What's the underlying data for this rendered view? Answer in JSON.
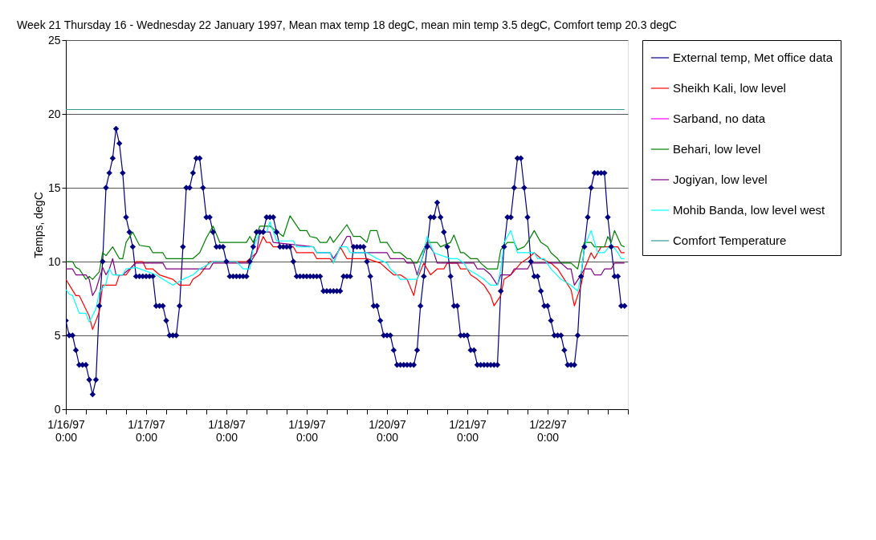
{
  "chart_data": {
    "type": "line",
    "title": "Week 21 Thursday 16 - Wednesday 22 January 1997, Mean max temp 18 degC, mean min temp 3.5 degC, Comfort temp 20.3 degC",
    "ylabel": "Temps, degC",
    "xlim": [
      "1997-01-16T00:00",
      "1997-01-23T00:00"
    ],
    "xticks": [
      {
        "value": "1997-01-16T00:00",
        "label": "1/16/97 0:00"
      },
      {
        "value": "1997-01-16T06:00",
        "label": null
      },
      {
        "value": "1997-01-16T12:00",
        "label": null
      },
      {
        "value": "1997-01-16T18:00",
        "label": null
      },
      {
        "value": "1997-01-17T00:00",
        "label": "1/17/97 0:00"
      },
      {
        "value": "1997-01-17T06:00",
        "label": null
      },
      {
        "value": "1997-01-17T12:00",
        "label": null
      },
      {
        "value": "1997-01-17T18:00",
        "label": null
      },
      {
        "value": "1997-01-18T00:00",
        "label": "1/18/97 0:00"
      },
      {
        "value": "1997-01-18T06:00",
        "label": null
      },
      {
        "value": "1997-01-18T12:00",
        "label": null
      },
      {
        "value": "1997-01-18T18:00",
        "label": null
      },
      {
        "value": "1997-01-19T00:00",
        "label": "1/19/97 0:00"
      },
      {
        "value": "1997-01-19T06:00",
        "label": null
      },
      {
        "value": "1997-01-19T12:00",
        "label": null
      },
      {
        "value": "1997-01-19T18:00",
        "label": null
      },
      {
        "value": "1997-01-20T00:00",
        "label": "1/20/97 0:00"
      },
      {
        "value": "1997-01-20T06:00",
        "label": null
      },
      {
        "value": "1997-01-20T12:00",
        "label": null
      },
      {
        "value": "1997-01-20T18:00",
        "label": null
      },
      {
        "value": "1997-01-21T00:00",
        "label": "1/21/97 0:00"
      },
      {
        "value": "1997-01-21T06:00",
        "label": null
      },
      {
        "value": "1997-01-21T12:00",
        "label": null
      },
      {
        "value": "1997-01-21T18:00",
        "label": null
      },
      {
        "value": "1997-01-22T00:00",
        "label": "1/22/97 0:00"
      },
      {
        "value": "1997-01-22T06:00",
        "label": null
      },
      {
        "value": "1997-01-22T12:00",
        "label": null
      },
      {
        "value": "1997-01-22T18:00",
        "label": null
      },
      {
        "value": "1997-01-23T00:00",
        "label": null
      }
    ],
    "ylim": [
      0,
      25
    ],
    "yticks": [
      0,
      5,
      10,
      15,
      20,
      25
    ],
    "grid": "y",
    "legend": "right",
    "x": [
      "1997-01-16T00:00",
      "1997-01-16T01:00",
      "1997-01-16T02:00",
      "1997-01-16T03:00",
      "1997-01-16T04:00",
      "1997-01-16T05:00",
      "1997-01-16T06:00",
      "1997-01-16T07:00",
      "1997-01-16T08:00",
      "1997-01-16T09:00",
      "1997-01-16T10:00",
      "1997-01-16T11:00",
      "1997-01-16T12:00",
      "1997-01-16T13:00",
      "1997-01-16T14:00",
      "1997-01-16T15:00",
      "1997-01-16T16:00",
      "1997-01-16T17:00",
      "1997-01-16T18:00",
      "1997-01-16T19:00",
      "1997-01-16T20:00",
      "1997-01-16T21:00",
      "1997-01-16T22:00",
      "1997-01-16T23:00",
      "1997-01-17T00:00",
      "1997-01-17T01:00",
      "1997-01-17T02:00",
      "1997-01-17T03:00",
      "1997-01-17T04:00",
      "1997-01-17T05:00",
      "1997-01-17T06:00",
      "1997-01-17T07:00",
      "1997-01-17T08:00",
      "1997-01-17T09:00",
      "1997-01-17T10:00",
      "1997-01-17T11:00",
      "1997-01-17T12:00",
      "1997-01-17T13:00",
      "1997-01-17T14:00",
      "1997-01-17T15:00",
      "1997-01-17T16:00",
      "1997-01-17T17:00",
      "1997-01-17T18:00",
      "1997-01-17T19:00",
      "1997-01-17T20:00",
      "1997-01-17T21:00",
      "1997-01-17T22:00",
      "1997-01-17T23:00",
      "1997-01-18T00:00",
      "1997-01-18T01:00",
      "1997-01-18T02:00",
      "1997-01-18T03:00",
      "1997-01-18T04:00",
      "1997-01-18T05:00",
      "1997-01-18T06:00",
      "1997-01-18T07:00",
      "1997-01-18T08:00",
      "1997-01-18T09:00",
      "1997-01-18T10:00",
      "1997-01-18T11:00",
      "1997-01-18T12:00",
      "1997-01-18T13:00",
      "1997-01-18T14:00",
      "1997-01-18T15:00",
      "1997-01-18T16:00",
      "1997-01-18T17:00",
      "1997-01-18T18:00",
      "1997-01-18T19:00",
      "1997-01-18T20:00",
      "1997-01-18T21:00",
      "1997-01-18T22:00",
      "1997-01-18T23:00",
      "1997-01-19T00:00",
      "1997-01-19T01:00",
      "1997-01-19T02:00",
      "1997-01-19T03:00",
      "1997-01-19T04:00",
      "1997-01-19T05:00",
      "1997-01-19T06:00",
      "1997-01-19T07:00",
      "1997-01-19T08:00",
      "1997-01-19T09:00",
      "1997-01-19T10:00",
      "1997-01-19T11:00",
      "1997-01-19T12:00",
      "1997-01-19T13:00",
      "1997-01-19T14:00",
      "1997-01-19T15:00",
      "1997-01-19T16:00",
      "1997-01-19T17:00",
      "1997-01-19T18:00",
      "1997-01-19T19:00",
      "1997-01-19T20:00",
      "1997-01-19T21:00",
      "1997-01-19T22:00",
      "1997-01-19T23:00",
      "1997-01-20T00:00",
      "1997-01-20T01:00",
      "1997-01-20T02:00",
      "1997-01-20T03:00",
      "1997-01-20T04:00",
      "1997-01-20T05:00",
      "1997-01-20T06:00",
      "1997-01-20T07:00",
      "1997-01-20T08:00",
      "1997-01-20T09:00",
      "1997-01-20T10:00",
      "1997-01-20T11:00",
      "1997-01-20T12:00",
      "1997-01-20T13:00",
      "1997-01-20T14:00",
      "1997-01-20T15:00",
      "1997-01-20T16:00",
      "1997-01-20T17:00",
      "1997-01-20T18:00",
      "1997-01-20T19:00",
      "1997-01-20T20:00",
      "1997-01-20T21:00",
      "1997-01-20T22:00",
      "1997-01-20T23:00",
      "1997-01-21T00:00",
      "1997-01-21T01:00",
      "1997-01-21T02:00",
      "1997-01-21T03:00",
      "1997-01-21T04:00",
      "1997-01-21T05:00",
      "1997-01-21T06:00",
      "1997-01-21T07:00",
      "1997-01-21T08:00",
      "1997-01-21T09:00",
      "1997-01-21T10:00",
      "1997-01-21T11:00",
      "1997-01-21T12:00",
      "1997-01-21T13:00",
      "1997-01-21T14:00",
      "1997-01-21T15:00",
      "1997-01-21T16:00",
      "1997-01-21T17:00",
      "1997-01-21T18:00",
      "1997-01-21T19:00",
      "1997-01-21T20:00",
      "1997-01-21T21:00",
      "1997-01-21T22:00",
      "1997-01-21T23:00",
      "1997-01-22T00:00",
      "1997-01-22T01:00",
      "1997-01-22T02:00",
      "1997-01-22T03:00",
      "1997-01-22T04:00",
      "1997-01-22T05:00",
      "1997-01-22T06:00",
      "1997-01-22T07:00",
      "1997-01-22T08:00",
      "1997-01-22T09:00",
      "1997-01-22T10:00",
      "1997-01-22T11:00",
      "1997-01-22T12:00",
      "1997-01-22T13:00",
      "1997-01-22T14:00",
      "1997-01-22T15:00",
      "1997-01-22T16:00",
      "1997-01-22T17:00",
      "1997-01-22T18:00",
      "1997-01-22T19:00",
      "1997-01-22T20:00",
      "1997-01-22T21:00",
      "1997-01-22T22:00",
      "1997-01-22T23:00"
    ],
    "series": [
      {
        "name": "External temp, Met office data",
        "color": "#000080",
        "marker": "diamond",
        "values": [
          6,
          5,
          5,
          4,
          3,
          3,
          3,
          2,
          1,
          2,
          7,
          10,
          15,
          16,
          17,
          19,
          18,
          16,
          13,
          12,
          11,
          9,
          9,
          9,
          9,
          9,
          9,
          7,
          7,
          7,
          6,
          5,
          5,
          5,
          7,
          11,
          15,
          15,
          16,
          17,
          17,
          15,
          13,
          13,
          12,
          11,
          11,
          11,
          10,
          9,
          9,
          9,
          9,
          9,
          9,
          10,
          11,
          12,
          12,
          12,
          13,
          13,
          13,
          12,
          11,
          11,
          11,
          11,
          10,
          9,
          9,
          9,
          9,
          9,
          9,
          9,
          9,
          8,
          8,
          8,
          8,
          8,
          8,
          9,
          9,
          9,
          11,
          11,
          11,
          11,
          10,
          9,
          7,
          7,
          6,
          5,
          5,
          5,
          4,
          3,
          3,
          3,
          3,
          3,
          3,
          4,
          7,
          9,
          11,
          13,
          13,
          14,
          13,
          12,
          11,
          9,
          7,
          7,
          5,
          5,
          5,
          4,
          4,
          3,
          3,
          3,
          3,
          3,
          3,
          3,
          8,
          11,
          13,
          13,
          15,
          17,
          17,
          15,
          13,
          10,
          9,
          9,
          8,
          7,
          7,
          6,
          5,
          5,
          5,
          4,
          3,
          3,
          3,
          5,
          9,
          11,
          13,
          15,
          16,
          16,
          16,
          16,
          13,
          11,
          9,
          9,
          7,
          7
        ]
      },
      {
        "name": "Sheikh Kali, low level",
        "color": "#ff0000",
        "x": [
          "1997-01-16T00:00",
          "1997-01-16T03:00",
          "1997-01-16T04:00",
          "1997-01-16T07:00",
          "1997-01-16T08:00",
          "1997-01-16T10:00",
          "1997-01-16T11:00",
          "1997-01-16T15:00",
          "1997-01-16T16:00",
          "1997-01-16T18:00",
          "1997-01-16T21:00",
          "1997-01-16T23:00",
          "1997-01-17T00:00",
          "1997-01-17T02:00",
          "1997-01-17T04:00",
          "1997-01-17T08:00",
          "1997-01-17T10:00",
          "1997-01-17T13:00",
          "1997-01-17T14:00",
          "1997-01-17T16:00",
          "1997-01-17T19:00",
          "1997-01-18T06:00",
          "1997-01-18T09:00",
          "1997-01-18T11:00",
          "1997-01-18T12:00",
          "1997-01-18T13:00",
          "1997-01-18T14:00",
          "1997-01-18T20:00",
          "1997-01-18T21:00",
          "1997-01-19T02:00",
          "1997-01-19T03:00",
          "1997-01-19T07:00",
          "1997-01-19T08:00",
          "1997-01-19T10:00",
          "1997-01-19T12:00",
          "1997-01-19T18:00",
          "1997-01-19T22:00",
          "1997-01-20T00:00",
          "1997-01-20T02:00",
          "1997-01-20T04:00",
          "1997-01-20T06:00",
          "1997-01-20T08:00",
          "1997-01-20T09:00",
          "1997-01-20T11:00",
          "1997-01-20T13:00",
          "1997-01-20T15:00",
          "1997-01-20T17:00",
          "1997-01-20T18:00",
          "1997-01-20T21:00",
          "1997-01-20T22:00",
          "1997-01-21T00:00",
          "1997-01-21T01:00",
          "1997-01-21T03:00",
          "1997-01-21T05:00",
          "1997-01-21T07:00",
          "1997-01-21T08:00",
          "1997-01-21T10:00",
          "1997-01-21T11:00",
          "1997-01-21T13:00",
          "1997-01-21T16:00",
          "1997-01-21T18:00",
          "1997-01-21T20:00",
          "1997-01-21T22:00",
          "1997-01-22T01:00",
          "1997-01-22T03:00",
          "1997-01-22T05:00",
          "1997-01-22T07:00",
          "1997-01-22T08:00",
          "1997-01-22T10:00",
          "1997-01-22T11:00",
          "1997-01-22T13:00",
          "1997-01-22T14:00",
          "1997-01-22T16:00",
          "1997-01-22T21:00",
          "1997-01-22T22:00",
          "1997-01-22T23:00"
        ],
        "values": [
          8.8,
          7.7,
          7.7,
          6.3,
          5.4,
          6.6,
          8.4,
          8.4,
          9.1,
          9.1,
          10,
          10,
          9.5,
          9.5,
          9.1,
          8.8,
          8.4,
          8.4,
          8.8,
          9.1,
          10,
          10,
          10.6,
          11.7,
          11.3,
          11.3,
          11,
          11,
          10.6,
          10.6,
          10.2,
          10.2,
          9.9,
          11,
          10.2,
          10.2,
          9.9,
          9.5,
          9.1,
          9.1,
          8.8,
          7.7,
          8.8,
          9.9,
          9.1,
          9.5,
          9.5,
          9.9,
          9.9,
          9.5,
          9.5,
          9.1,
          8.8,
          8.4,
          7.7,
          7,
          7.7,
          8.8,
          9.1,
          9.9,
          10.2,
          10.6,
          10.2,
          9.9,
          9.5,
          8.8,
          8.1,
          7,
          8.4,
          9.5,
          10.6,
          10.2,
          11,
          11,
          10.6,
          10.6
        ]
      },
      {
        "name": "Sarband, no data",
        "color": "#ff00ff",
        "values": [
          null,
          null,
          null,
          null,
          null,
          null,
          null,
          null,
          null,
          null,
          null,
          null,
          null,
          null,
          null,
          null,
          null,
          null,
          null,
          null,
          null,
          null,
          null,
          null,
          null,
          null,
          null,
          null,
          null,
          null,
          null,
          null,
          null,
          null,
          null,
          null,
          null,
          null,
          null,
          null,
          null,
          null,
          null,
          null,
          null,
          null,
          null,
          null,
          null,
          null,
          null,
          null,
          null,
          null,
          null,
          null,
          null,
          null,
          null,
          null,
          null,
          null,
          null,
          null,
          null,
          null,
          null,
          null,
          null,
          null,
          null,
          null,
          null,
          null,
          null,
          null,
          null,
          null,
          null,
          null,
          null,
          null,
          null,
          null,
          null,
          null,
          null,
          null,
          null,
          null,
          null,
          null,
          null,
          null,
          null,
          null,
          null,
          null,
          null,
          null,
          null,
          null,
          null,
          null,
          null,
          null,
          null,
          null,
          null,
          null,
          null,
          null,
          null,
          null,
          null,
          null,
          null,
          null,
          null,
          null,
          null,
          null,
          null,
          null,
          null,
          null,
          null,
          null,
          null,
          null,
          null,
          null,
          null,
          null,
          null,
          null,
          null,
          null,
          null,
          null,
          null,
          null,
          null,
          null,
          null,
          null,
          null,
          null,
          null,
          null,
          null,
          null,
          null,
          null,
          null,
          null,
          null,
          null,
          null,
          null,
          null,
          null,
          null,
          null,
          null,
          null,
          null,
          null
        ]
      },
      {
        "name": "Behari, low level",
        "color": "#008000",
        "x": [
          "1997-01-16T00:00",
          "1997-01-16T02:00",
          "1997-01-16T03:00",
          "1997-01-16T04:00",
          "1997-01-16T06:00",
          "1997-01-16T07:00",
          "1997-01-16T08:00",
          "1997-01-16T10:00",
          "1997-01-16T11:00",
          "1997-01-16T12:00",
          "1997-01-16T14:00",
          "1997-01-16T16:00",
          "1997-01-16T17:00",
          "1997-01-16T18:00",
          "1997-01-16T20:00",
          "1997-01-16T22:00",
          "1997-01-17T01:00",
          "1997-01-17T02:00",
          "1997-01-17T05:00",
          "1997-01-17T06:00",
          "1997-01-17T14:00",
          "1997-01-17T16:00",
          "1997-01-17T18:00",
          "1997-01-17T20:00",
          "1997-01-17T22:00",
          "1997-01-18T06:00",
          "1997-01-18T07:00",
          "1997-01-18T08:00",
          "1997-01-18T10:00",
          "1997-01-18T13:00",
          "1997-01-18T17:00",
          "1997-01-18T19:00",
          "1997-01-18T22:00",
          "1997-01-19T00:00",
          "1997-01-19T01:00",
          "1997-01-19T03:00",
          "1997-01-19T04:00",
          "1997-01-19T06:00",
          "1997-01-19T07:00",
          "1997-01-19T08:00",
          "1997-01-19T12:00",
          "1997-01-19T14:00",
          "1997-01-19T16:00",
          "1997-01-19T18:00",
          "1997-01-19T19:00",
          "1997-01-19T21:00",
          "1997-01-19T22:00",
          "1997-01-20T00:00",
          "1997-01-20T02:00",
          "1997-01-20T04:00",
          "1997-01-20T06:00",
          "1997-01-20T07:00",
          "1997-01-20T08:00",
          "1997-01-20T09:00",
          "1997-01-20T10:00",
          "1997-01-20T12:00",
          "1997-01-20T15:00",
          "1997-01-20T16:00",
          "1997-01-20T19:00",
          "1997-01-20T20:00",
          "1997-01-20T22:00",
          "1997-01-20T23:00",
          "1997-01-21T01:00",
          "1997-01-21T03:00",
          "1997-01-21T04:00",
          "1997-01-21T06:00",
          "1997-01-21T09:00",
          "1997-01-21T10:00",
          "1997-01-21T12:00",
          "1997-01-21T14:00",
          "1997-01-21T15:00",
          "1997-01-21T17:00",
          "1997-01-21T18:00",
          "1997-01-21T20:00",
          "1997-01-21T22:00",
          "1997-01-22T00:00",
          "1997-01-22T01:00",
          "1997-01-22T03:00",
          "1997-01-22T04:00",
          "1997-01-22T07:00",
          "1997-01-22T09:00",
          "1997-01-22T10:00",
          "1997-01-22T11:00",
          "1997-01-22T13:00",
          "1997-01-22T14:00",
          "1997-01-22T17:00",
          "1997-01-22T18:00",
          "1997-01-22T19:00",
          "1997-01-22T20:00",
          "1997-01-22T22:00",
          "1997-01-22T23:00"
        ],
        "values": [
          10,
          10,
          9.6,
          9.5,
          8.8,
          9,
          8.8,
          9.3,
          10.6,
          10.4,
          11,
          10.2,
          10.2,
          11.3,
          12,
          11.1,
          11,
          10.6,
          10.6,
          10.2,
          10.2,
          10.6,
          11.6,
          12.4,
          11.3,
          11.3,
          11.7,
          11.3,
          12.4,
          12.4,
          11.7,
          13.1,
          12.1,
          12.1,
          11.7,
          11.6,
          11.3,
          11.3,
          11.7,
          11.3,
          12.5,
          11.7,
          11.7,
          11.3,
          12.1,
          12.1,
          11.3,
          11.3,
          10.6,
          10.6,
          10.2,
          10.2,
          9.9,
          9.9,
          10.4,
          11.3,
          11.3,
          11,
          11.3,
          11.8,
          10.6,
          10.6,
          10.2,
          10.2,
          9.9,
          9.5,
          9.5,
          10.8,
          11.3,
          11.3,
          10.8,
          11,
          11.3,
          12.1,
          11.3,
          11,
          10.6,
          10.2,
          9.9,
          9.9,
          9.5,
          10.6,
          11.3,
          11.3,
          11,
          11,
          11.7,
          11.3,
          12.1,
          11.1,
          11
        ]
      },
      {
        "name": "Jogiyan, low level",
        "color": "#800080",
        "x": [
          "1997-01-16T00:00",
          "1997-01-16T02:00",
          "1997-01-16T03:00",
          "1997-01-16T06:00",
          "1997-01-16T07:00",
          "1997-01-16T08:00",
          "1997-01-16T09:00",
          "1997-01-16T11:00",
          "1997-01-16T12:00",
          "1997-01-16T13:00",
          "1997-01-16T14:00",
          "1997-01-16T15:00",
          "1997-01-16T17:00",
          "1997-01-16T19:00",
          "1997-01-16T21:00",
          "1997-01-17T05:00",
          "1997-01-17T06:00",
          "1997-01-17T19:00",
          "1997-01-17T20:00",
          "1997-01-18T07:00",
          "1997-01-18T09:00",
          "1997-01-18T10:00",
          "1997-01-18T13:00",
          "1997-01-18T14:00",
          "1997-01-19T02:00",
          "1997-01-19T03:00",
          "1997-01-19T07:00",
          "1997-01-19T08:00",
          "1997-01-19T10:00",
          "1997-01-19T12:00",
          "1997-01-19T13:00",
          "1997-01-19T14:00",
          "1997-01-20T00:00",
          "1997-01-20T01:00",
          "1997-01-20T05:00",
          "1997-01-20T06:00",
          "1997-01-20T08:00",
          "1997-01-20T09:00",
          "1997-01-20T12:00",
          "1997-01-20T14:00",
          "1997-01-20T15:00",
          "1997-01-21T02:00",
          "1997-01-21T03:00",
          "1997-01-21T05:00",
          "1997-01-21T07:00",
          "1997-01-21T09:00",
          "1997-01-21T10:00",
          "1997-01-21T13:00",
          "1997-01-21T14:00",
          "1997-01-21T18:00",
          "1997-01-21T19:00",
          "1997-01-22T04:00",
          "1997-01-22T06:00",
          "1997-01-22T07:00",
          "1997-01-22T08:00",
          "1997-01-22T10:00",
          "1997-01-22T11:00",
          "1997-01-22T13:00",
          "1997-01-22T14:00",
          "1997-01-22T16:00",
          "1997-01-22T17:00",
          "1997-01-22T19:00",
          "1997-01-22T20:00",
          "1997-01-22T23:00"
        ],
        "values": [
          9.5,
          9.5,
          9.1,
          9.1,
          8.8,
          7.7,
          8.1,
          9.6,
          9.1,
          9.5,
          10.2,
          9.1,
          9.1,
          9.5,
          9.9,
          9.9,
          9.5,
          9.5,
          9.9,
          9.9,
          10.6,
          12,
          12,
          11.3,
          11,
          10.6,
          10.6,
          10.2,
          10.9,
          11.7,
          11.7,
          10.6,
          10.6,
          10.2,
          10.2,
          9.9,
          9.9,
          9.1,
          11.3,
          10.6,
          9.9,
          9.9,
          9.5,
          9.5,
          9.1,
          8.4,
          9.1,
          9.1,
          9.5,
          9.5,
          9.9,
          9.9,
          9.5,
          9.5,
          8.4,
          9.1,
          9.5,
          9.5,
          9.1,
          9.1,
          9.5,
          9.5,
          9.9,
          9.9
        ]
      },
      {
        "name": "Mohib Banda, low level west",
        "color": "#00ffff",
        "x": [
          "1997-01-16T00:00",
          "1997-01-16T01:00",
          "1997-01-16T02:00",
          "1997-01-16T04:00",
          "1997-01-16T06:00",
          "1997-01-16T07:00",
          "1997-01-16T09:00",
          "1997-01-16T10:00",
          "1997-01-16T12:00",
          "1997-01-16T13:00",
          "1997-01-16T14:00",
          "1997-01-16T17:00",
          "1997-01-16T18:00",
          "1997-01-16T21:00",
          "1997-01-17T03:00",
          "1997-01-17T05:00",
          "1997-01-17T08:00",
          "1997-01-17T11:00",
          "1997-01-17T14:00",
          "1997-01-17T16:00",
          "1997-01-17T20:00",
          "1997-01-18T03:00",
          "1997-01-18T05:00",
          "1997-01-18T07:00",
          "1997-01-18T08:00",
          "1997-01-18T10:00",
          "1997-01-18T12:00",
          "1997-01-18T13:00",
          "1997-01-18T15:00",
          "1997-01-18T20:00",
          "1997-01-18T21:00",
          "1997-01-19T02:00",
          "1997-01-19T03:00",
          "1997-01-19T07:00",
          "1997-01-19T08:00",
          "1997-01-19T10:00",
          "1997-01-19T12:00",
          "1997-01-19T13:00",
          "1997-01-19T18:00",
          "1997-01-19T21:00",
          "1997-01-20T00:00",
          "1997-01-20T01:00",
          "1997-01-20T03:00",
          "1997-01-20T04:00",
          "1997-01-20T09:00",
          "1997-01-20T12:00",
          "1997-01-20T14:00",
          "1997-01-20T19:00",
          "1997-01-20T21:00",
          "1997-01-20T23:00",
          "1997-01-21T00:00",
          "1997-01-21T03:00",
          "1997-01-21T05:00",
          "1997-01-21T07:00",
          "1997-01-21T09:00",
          "1997-01-21T10:00",
          "1997-01-21T11:00",
          "1997-01-21T13:00",
          "1997-01-21T15:00",
          "1997-01-21T20:00",
          "1997-01-21T21:00",
          "1997-01-21T23:00",
          "1997-01-22T01:00",
          "1997-01-22T04:00",
          "1997-01-22T07:00",
          "1997-01-22T09:00",
          "1997-01-22T10:00",
          "1997-01-22T11:00",
          "1997-01-22T13:00",
          "1997-01-22T15:00",
          "1997-01-22T17:00",
          "1997-01-22T19:00",
          "1997-01-22T21:00",
          "1997-01-22T22:00",
          "1997-01-22T23:00"
        ],
        "values": [
          8.1,
          7.8,
          7.7,
          6.5,
          6.5,
          5.9,
          6.8,
          7.9,
          8.5,
          9.5,
          9.1,
          9.1,
          9.5,
          9.6,
          9.1,
          8.8,
          8.4,
          8.8,
          9.1,
          9.5,
          10,
          10,
          9.5,
          9.5,
          10.9,
          12,
          12,
          12.7,
          11.4,
          11.4,
          11,
          11,
          10.6,
          10.6,
          9.9,
          11,
          11,
          10.6,
          10.6,
          10.2,
          9.9,
          9.5,
          9.1,
          8.8,
          8.8,
          11.7,
          10.6,
          10.2,
          10.2,
          9.9,
          9.5,
          9.1,
          8.8,
          8.4,
          8.4,
          9.5,
          11.3,
          12.1,
          10.6,
          10.6,
          10.2,
          10.2,
          9.5,
          8.8,
          8.4,
          8,
          9.1,
          11,
          12.1,
          10.6,
          10.6,
          11.2,
          10.6,
          10.2,
          10.2
        ]
      },
      {
        "name": "Comfort Temperature",
        "color": "#339999",
        "x": [
          "1997-01-16T00:00",
          "1997-01-22T23:00"
        ],
        "values": [
          20.3,
          20.3
        ]
      }
    ]
  }
}
